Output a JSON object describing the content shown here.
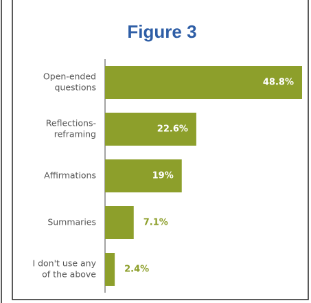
{
  "chart_data": {
    "type": "hbar",
    "title": "Figure 3",
    "categories": [
      [
        "Open-ended",
        "questions"
      ],
      [
        "Reflections-",
        "reframing"
      ],
      [
        "Affirmations"
      ],
      [
        "Summaries"
      ],
      [
        "I don't use any",
        "of the above"
      ]
    ],
    "values": [
      48.8,
      22.6,
      19,
      7.1,
      2.4
    ],
    "value_labels": [
      "48.8%",
      "22.6%",
      "19%",
      "7.1%",
      "2.4%"
    ],
    "color": "#8d9f2b"
  }
}
